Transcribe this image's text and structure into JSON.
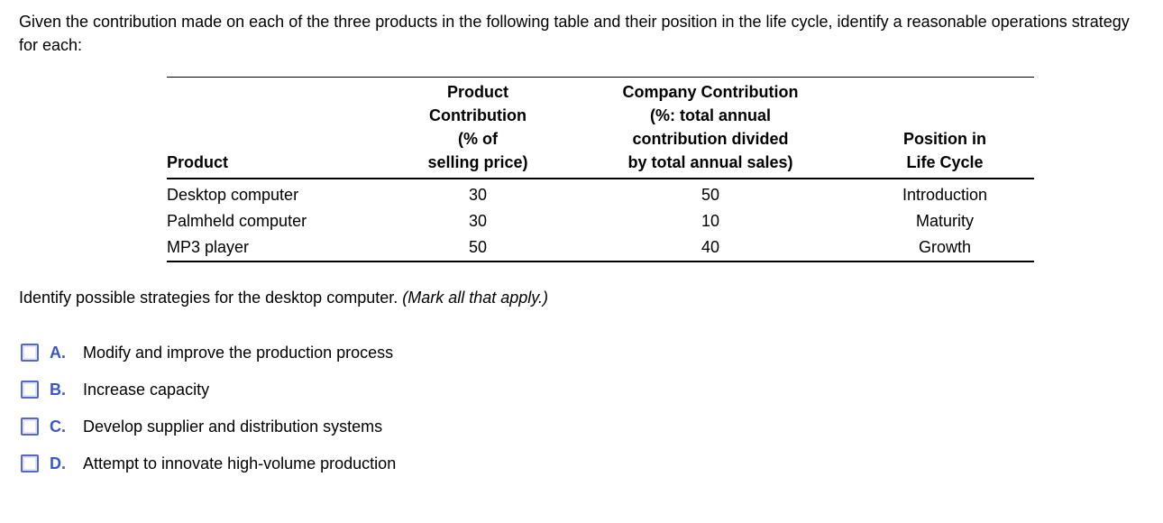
{
  "question": {
    "intro": "Given the contribution made on each of the three products in the following table and their position in the life cycle, identify a reasonable operations strategy for each:",
    "prompt": "Identify possible strategies for the desktop computer.",
    "prompt_note": "(Mark all that apply.)"
  },
  "table": {
    "columns": [
      {
        "header_lines": [
          "Product"
        ]
      },
      {
        "header_lines": [
          "Product",
          "Contribution",
          "(% of",
          "selling price)"
        ]
      },
      {
        "header_lines": [
          "Company Contribution",
          "(%: total annual",
          "contribution divided",
          "by total annual sales)"
        ]
      },
      {
        "header_lines": [
          "Position in",
          "Life Cycle"
        ]
      }
    ],
    "rows": [
      {
        "product": "Desktop computer",
        "product_contribution": "30",
        "company_contribution": "50",
        "life_cycle": "Introduction"
      },
      {
        "product": "Palmheld computer",
        "product_contribution": "30",
        "company_contribution": "10",
        "life_cycle": "Maturity"
      },
      {
        "product": "MP3 player",
        "product_contribution": "50",
        "company_contribution": "40",
        "life_cycle": "Growth"
      }
    ]
  },
  "options": [
    {
      "letter": "A.",
      "label": "Modify and improve the production process",
      "checked": false
    },
    {
      "letter": "B.",
      "label": "Increase capacity",
      "checked": false
    },
    {
      "letter": "C.",
      "label": "Develop supplier and distribution systems",
      "checked": false
    },
    {
      "letter": "D.",
      "label": "Attempt to innovate high-volume production",
      "checked": false
    }
  ],
  "colors": {
    "option_letter": "#3a57c5",
    "checkbox_border": "#5765cc",
    "checkbox_inner": "#dfe4f8",
    "text": "#000000",
    "background": "#ffffff"
  }
}
